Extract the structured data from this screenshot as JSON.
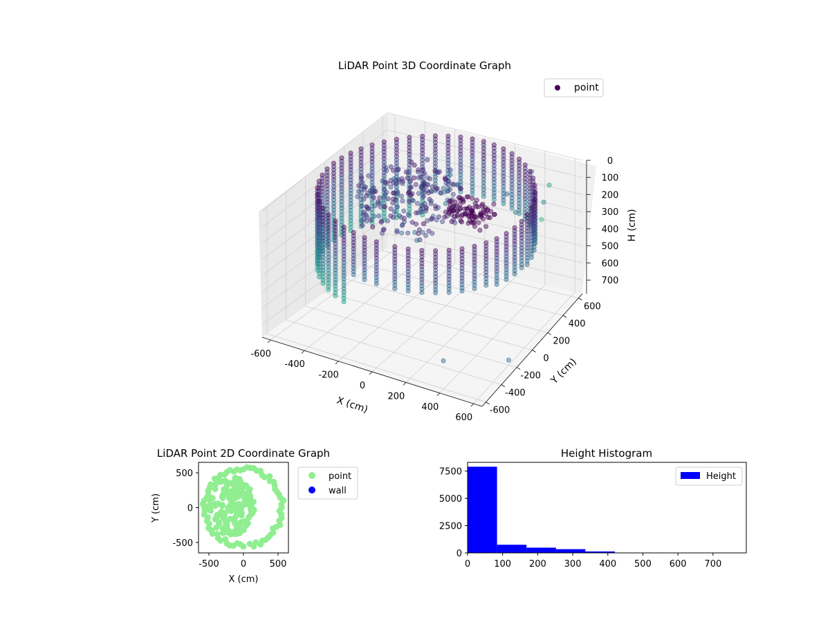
{
  "colors": {
    "viridis": [
      "#440154",
      "#482878",
      "#3e4989",
      "#31688e",
      "#26828e",
      "#1f9e89",
      "#35b779",
      "#6ece58",
      "#b5de2b",
      "#fde725"
    ],
    "point2d": "#90ee90",
    "wall2d": "#0000ff",
    "hist_bar": "#0000ff",
    "pane": "#f2f2f2",
    "grid": "#cfcfcf"
  },
  "chart_data": [
    {
      "type": "scatter3d",
      "title": "LiDAR Point 3D Coordinate Graph",
      "xlabel": "X (cm)",
      "ylabel": "Y (cm)",
      "zlabel": "H (cm)",
      "xticks": [
        -600,
        -400,
        -200,
        0,
        200,
        400,
        600
      ],
      "yticks": [
        -600,
        -400,
        -200,
        0,
        200,
        400,
        600
      ],
      "zticks": [
        0,
        100,
        200,
        300,
        400,
        500,
        600,
        700
      ],
      "xlim": [
        -650,
        650
      ],
      "ylim": [
        -650,
        650
      ],
      "zlim": [
        780,
        0
      ],
      "legend": {
        "entries": [
          "point"
        ],
        "placement": "top-right"
      },
      "colormap": "viridis",
      "shape": {
        "wall_radius": 600,
        "wall_angle_range_deg": [
          -80,
          270
        ],
        "wall_height_range": [
          0,
          460
        ],
        "wall_height_step": 20,
        "inner_cluster_center": [
          -150,
          50
        ],
        "inner_cluster_radius": 320,
        "outliers": [
          {
            "x": 560,
            "y": 400,
            "h": 30,
            "c": 0.55
          },
          {
            "x": 600,
            "y": 250,
            "h": 40,
            "c": 0.45
          },
          {
            "x": 650,
            "y": 120,
            "h": 60,
            "c": 0.7
          },
          {
            "x": 520,
            "y": 300,
            "h": 120,
            "c": 0.85
          },
          {
            "x": 470,
            "y": 150,
            "h": 80,
            "c": 0.5
          },
          {
            "x": 420,
            "y": 450,
            "h": 10,
            "c": 0.35
          },
          {
            "x": 380,
            "y": 220,
            "h": 30,
            "c": 0.3
          },
          {
            "x": 300,
            "y": -400,
            "h": 740,
            "c": 0.35
          },
          {
            "x": 600,
            "y": -200,
            "h": 750,
            "c": 0.3
          }
        ]
      }
    },
    {
      "type": "scatter",
      "title": "LiDAR Point 2D Coordinate Graph",
      "xlabel": "X (cm)",
      "ylabel": "Y (cm)",
      "xticks": [
        -500,
        0,
        500
      ],
      "yticks": [
        -500,
        0,
        500
      ],
      "xlim": [
        -650,
        650
      ],
      "ylim": [
        -650,
        650
      ],
      "legend": {
        "entries": [
          "point",
          "wall"
        ],
        "placement": "outside-right"
      }
    },
    {
      "type": "bar",
      "title": "Height Histogram",
      "xticks": [
        0,
        100,
        200,
        300,
        400,
        500,
        600,
        700
      ],
      "yticks": [
        0,
        2500,
        5000,
        7500
      ],
      "xlim": [
        0,
        795
      ],
      "ylim": [
        0,
        8300
      ],
      "bin_edges": [
        0,
        84,
        168,
        252,
        336,
        420,
        504,
        588,
        672,
        756
      ],
      "values": [
        7900,
        750,
        480,
        340,
        130,
        30,
        15,
        10,
        8
      ],
      "legend": {
        "entries": [
          "Height"
        ],
        "placement": "top-right"
      }
    }
  ]
}
